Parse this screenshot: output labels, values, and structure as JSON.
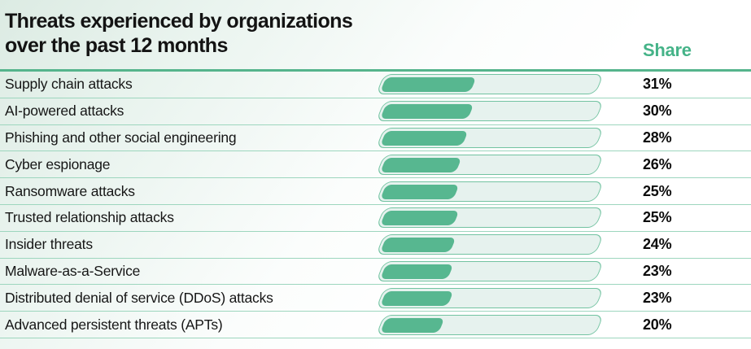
{
  "header": {
    "title": "Threats experienced by organizations over the past 12 months",
    "title_lines": [
      "Threats experienced by organizations",
      "over the past 12 months"
    ],
    "share_column_label": "Share"
  },
  "colors": {
    "accent_green": "#45b388",
    "bar_fill": "#57b790",
    "bar_border": "#72c3a1",
    "bar_track_bg": "#e6f2ee",
    "row_separator": "#9dd6be",
    "header_rule": "#55b48c",
    "background_tint": "#dcebe3",
    "title_text": "#131313"
  },
  "chart_data": {
    "type": "bar",
    "orientation": "horizontal",
    "title": "Threats experienced by organizations over the past 12 months",
    "value_column_label": "Share",
    "unit": "%",
    "categories": [
      "Supply chain attacks",
      "AI-powered attacks",
      "Phishing and other social engineering",
      "Cyber espionage",
      "Ransomware attacks",
      "Trusted relationship attacks",
      "Insider threats",
      "Malware-as-a-Service",
      "Distributed denial of service (DDoS) attacks",
      "Advanced persistent threats (APTs)"
    ],
    "values": [
      31,
      30,
      28,
      26,
      25,
      25,
      24,
      23,
      23,
      20
    ],
    "value_labels": [
      "31%",
      "30%",
      "28%",
      "26%",
      "25%",
      "25%",
      "24%",
      "23%",
      "23%",
      "20%"
    ],
    "xlim": [
      0,
      73
    ],
    "grid": false,
    "legend": false,
    "axis_ticks_hidden": true
  }
}
